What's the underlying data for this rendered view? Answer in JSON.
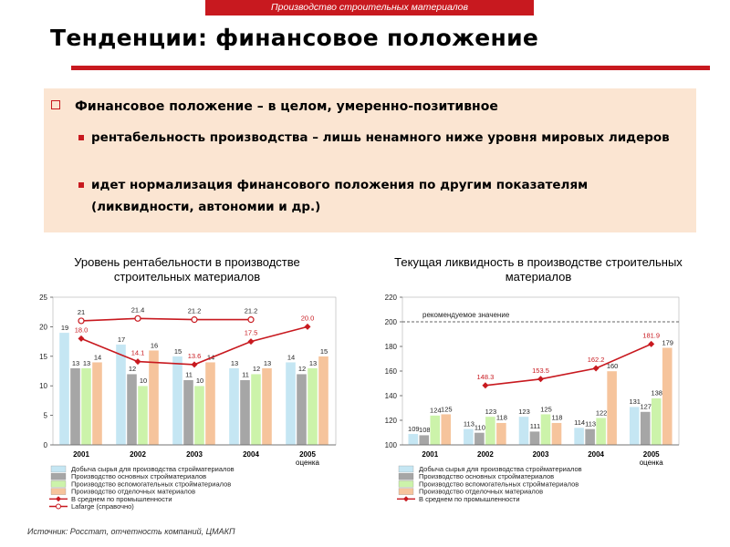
{
  "header": {
    "section": "Производство строительных материалов"
  },
  "title": "Тенденции: финансовое положение",
  "panel": {
    "main": "Финансовое положение – в целом, умеренно-позитивное",
    "bullet1": "рентабельность производства – лишь ненамного ниже уровня мировых лидеров",
    "bullet2": "идет нормализация финансового положения по другим показателям (ликвидности, автономии и др.)"
  },
  "colors": {
    "accent": "#c8191f",
    "panel": "#fbe5d2",
    "bar1": "#c5e6f3",
    "bar2": "#a6a6a6",
    "bar3": "#ccf3aa",
    "bar4": "#f6c49c",
    "line": "#c8191f"
  },
  "source": "Источник: Росстат, отчетность компаний, ЦМАКП",
  "chart_data": [
    {
      "type": "bar",
      "title": "Уровень рентабельности в производстве строительных материалов",
      "categories": [
        "2001",
        "2002",
        "2003",
        "2004",
        "2005"
      ],
      "category_notes": [
        "",
        "",
        "",
        "",
        "оценка"
      ],
      "ylim": [
        0,
        25
      ],
      "yticks": [
        0,
        5,
        10,
        15,
        20,
        25
      ],
      "series": [
        {
          "name": "Добыча сырья для производства стройматериалов",
          "values": [
            19,
            17,
            15,
            13,
            14
          ],
          "color": "#c5e6f3"
        },
        {
          "name": "Производство основных стройматериалов",
          "values": [
            13,
            12,
            11,
            11,
            12
          ],
          "color": "#a6a6a6"
        },
        {
          "name": "Производство вспомогательных стройматериалов",
          "values": [
            13,
            10,
            10,
            12,
            13
          ],
          "color": "#ccf3aa"
        },
        {
          "name": "Производство отделочных материалов",
          "values": [
            14,
            16,
            14,
            13,
            15
          ],
          "color": "#f6c49c"
        }
      ],
      "lines": [
        {
          "name": "В среднем по промышленности",
          "values": [
            18.0,
            14.1,
            13.6,
            17.5,
            20.0
          ],
          "style": "diamond"
        },
        {
          "name": "Lafarge (справочно)",
          "values": [
            21.0,
            21.4,
            21.2,
            21.2,
            null
          ],
          "style": "circle"
        }
      ],
      "line_extra": {
        "2003.5": 14
      },
      "annotations": []
    },
    {
      "type": "bar",
      "title": "Текущая ликвидность в производстве строительных материалов",
      "categories": [
        "2001",
        "2002",
        "2003",
        "2004",
        "2005"
      ],
      "category_notes": [
        "",
        "",
        "",
        "",
        "оценка"
      ],
      "ylim": [
        100,
        220
      ],
      "yticks": [
        100,
        120,
        140,
        160,
        180,
        200,
        220
      ],
      "reference": {
        "label": "рекомендуемое значение",
        "value": 200
      },
      "series": [
        {
          "name": "Добыча сырья для производства стройматериалов",
          "values": [
            109,
            113,
            123,
            114,
            131
          ],
          "color": "#c5e6f3"
        },
        {
          "name": "Производство основных стройматериалов",
          "values": [
            108,
            110,
            111,
            113,
            127
          ],
          "color": "#a6a6a6"
        },
        {
          "name": "Производство вспомогательных стройматериалов",
          "values": [
            124,
            123,
            125,
            122,
            138
          ],
          "color": "#ccf3aa"
        },
        {
          "name": "Производство отделочных материалов",
          "values": [
            125,
            118,
            118,
            160,
            179
          ],
          "color": "#f6c49c"
        }
      ],
      "lines": [
        {
          "name": "В среднем по промышленности",
          "values": [
            null,
            148.3,
            153.5,
            162.2,
            181.9
          ],
          "style": "diamond"
        }
      ]
    }
  ]
}
